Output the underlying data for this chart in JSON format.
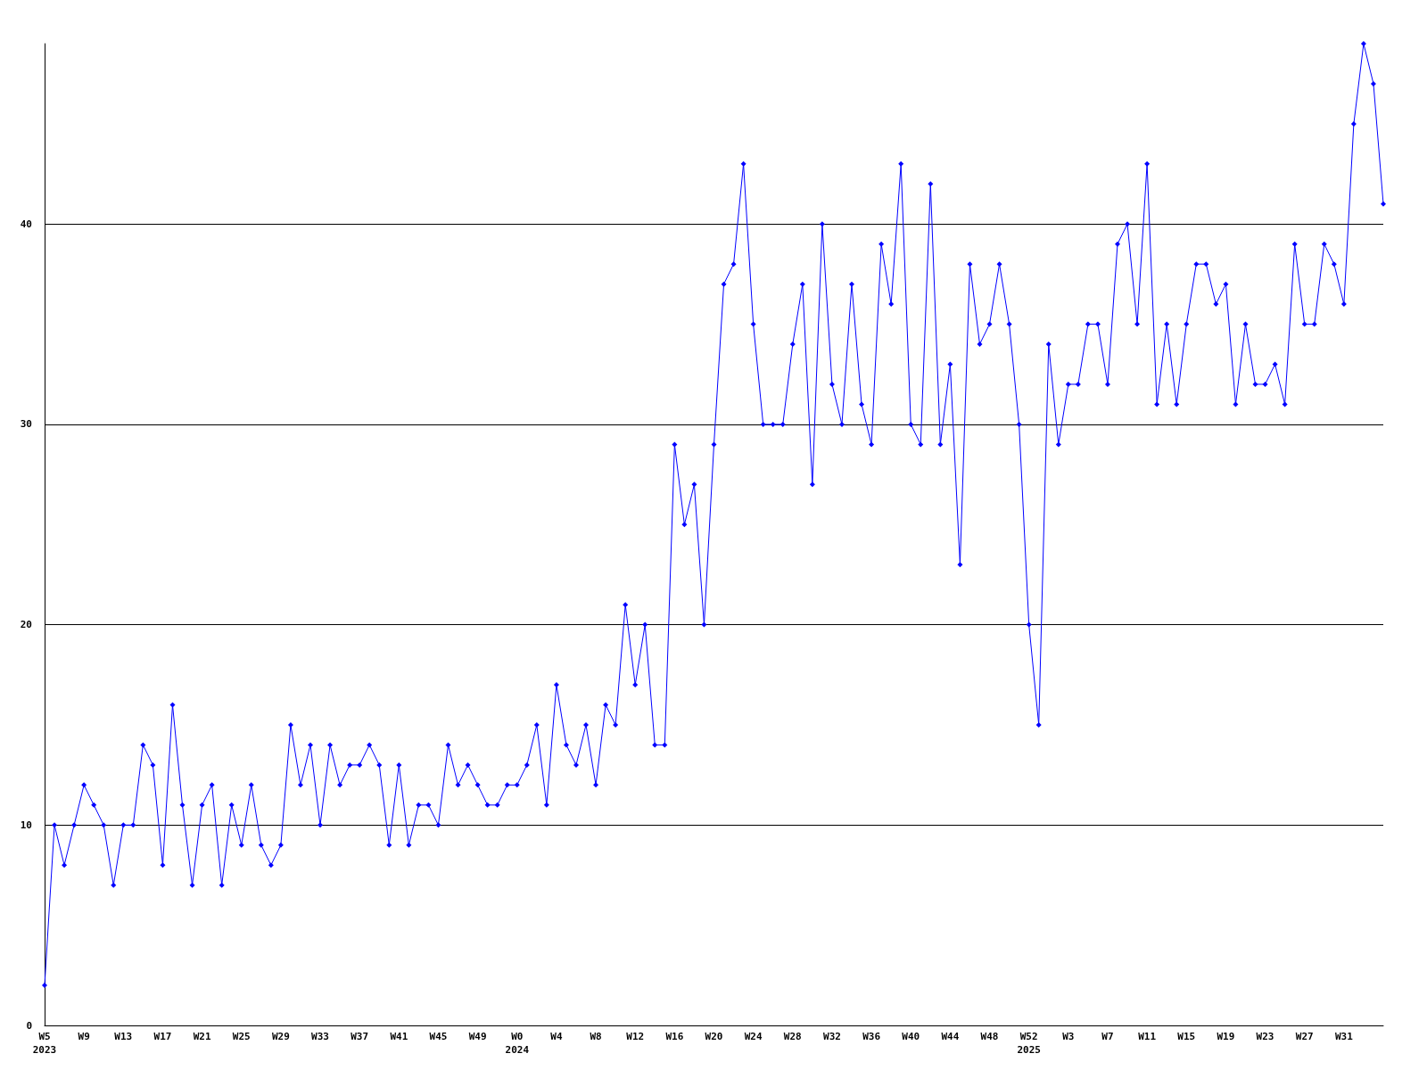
{
  "chart_data": {
    "type": "line",
    "categories": [
      "W5\n2023",
      null,
      null,
      null,
      "W9",
      null,
      null,
      null,
      "W13",
      null,
      null,
      null,
      "W17",
      null,
      null,
      null,
      "W21",
      null,
      null,
      null,
      "W25",
      null,
      null,
      null,
      "W29",
      null,
      null,
      null,
      "W33",
      null,
      null,
      null,
      "W37",
      null,
      null,
      null,
      "W41",
      null,
      null,
      null,
      "W45",
      null,
      null,
      null,
      "W49",
      null,
      null,
      null,
      "W0\n2024",
      null,
      null,
      null,
      "W4",
      null,
      null,
      null,
      "W8",
      null,
      null,
      null,
      "W12",
      null,
      null,
      null,
      "W16",
      null,
      null,
      null,
      "W20",
      null,
      null,
      null,
      "W24",
      null,
      null,
      null,
      "W28",
      null,
      null,
      null,
      "W32",
      null,
      null,
      null,
      "W36",
      null,
      null,
      null,
      "W40",
      null,
      null,
      null,
      "W44",
      null,
      null,
      null,
      "W48",
      null,
      null,
      null,
      "W52\n2025",
      null,
      null,
      null,
      "W3",
      null,
      null,
      null,
      "W7",
      null,
      null,
      null,
      "W11",
      null,
      null,
      null,
      "W15",
      null,
      null,
      null,
      "W19",
      null,
      null,
      null,
      "W23",
      null,
      null,
      null,
      "W27",
      null,
      null,
      null,
      "W31",
      null,
      null,
      null,
      null
    ],
    "values": [
      2,
      10,
      8,
      10,
      12,
      11,
      10,
      7,
      10,
      10,
      14,
      13,
      8,
      16,
      11,
      7,
      11,
      12,
      7,
      11,
      9,
      12,
      9,
      8,
      9,
      15,
      12,
      14,
      10,
      14,
      12,
      13,
      13,
      14,
      13,
      9,
      13,
      9,
      11,
      11,
      10,
      14,
      12,
      13,
      12,
      11,
      11,
      12,
      12,
      13,
      15,
      11,
      17,
      14,
      13,
      15,
      12,
      16,
      15,
      21,
      17,
      20,
      14,
      14,
      29,
      25,
      27,
      20,
      29,
      37,
      38,
      43,
      35,
      30,
      30,
      30,
      34,
      37,
      27,
      40,
      32,
      30,
      37,
      31,
      29,
      39,
      36,
      43,
      30,
      29,
      42,
      29,
      33,
      23,
      38,
      34,
      35,
      38,
      35,
      30,
      20,
      15,
      34,
      29,
      32,
      32,
      35,
      35,
      32,
      39,
      40,
      35,
      43,
      31,
      35,
      31,
      35,
      38,
      38,
      36,
      37,
      31,
      35,
      32,
      32,
      33,
      31,
      39,
      35,
      35,
      39,
      38,
      36,
      45,
      49,
      47,
      41
    ],
    "color": "#0000ff",
    "ylim": [
      0,
      49
    ],
    "yticks": [
      0,
      10,
      20,
      30,
      40
    ],
    "grid": "y",
    "marker": "diamond",
    "line_style": "solid"
  }
}
